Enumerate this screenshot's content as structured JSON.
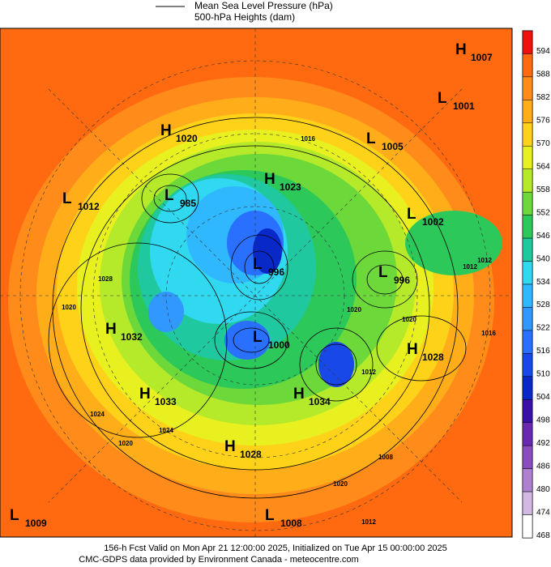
{
  "legend": {
    "line_label": "Mean Sea Level Pressure (hPa)",
    "fill_label": "500-hPa Heights (dam)"
  },
  "colorbar": {
    "levels": [
      594,
      588,
      582,
      576,
      570,
      564,
      558,
      552,
      546,
      540,
      534,
      528,
      522,
      516,
      510,
      504,
      498,
      492,
      486,
      480,
      474,
      468
    ],
    "colors": [
      "#f01010",
      "#ff6a10",
      "#ff8c1a",
      "#ffae1a",
      "#ffd21a",
      "#e8f020",
      "#b4ea2a",
      "#6cd83a",
      "#2cc85a",
      "#20c8a0",
      "#30d8f0",
      "#30b8ff",
      "#3098ff",
      "#2a70ff",
      "#1848e8",
      "#0828c8",
      "#3a10a8",
      "#6a28b0",
      "#8c4cc0",
      "#b080d0",
      "#d4b8e4",
      "#ffffff"
    ]
  },
  "centers": [
    {
      "type": "H",
      "value": 1007
    },
    {
      "type": "L",
      "value": 1001
    },
    {
      "type": "H",
      "value": 1020
    },
    {
      "type": "L",
      "value": 1005
    },
    {
      "type": "H",
      "value": 1023
    },
    {
      "type": "L",
      "value": 1012
    },
    {
      "type": "L",
      "value": 985
    },
    {
      "type": "L",
      "value": 1002
    },
    {
      "type": "L",
      "value": 996
    },
    {
      "type": "L",
      "value": 996
    },
    {
      "type": "H",
      "value": 1032
    },
    {
      "type": "L",
      "value": 1000
    },
    {
      "type": "H",
      "value": 1028
    },
    {
      "type": "H",
      "value": 1033
    },
    {
      "type": "H",
      "value": 1034
    },
    {
      "type": "H",
      "value": 1028
    },
    {
      "type": "L",
      "value": 1009
    },
    {
      "type": "L",
      "value": 1008
    }
  ],
  "contour_labels": [
    1016,
    1012,
    1028,
    1020,
    1024,
    1020,
    1024,
    1020,
    1012,
    1008,
    1016,
    1012,
    1020,
    1020,
    1012
  ],
  "footer": {
    "line1": "156-h Fcst Valid on Mon Apr 21 12:00:00 2025, Initialized on Tue Apr 15 00:00:00 2025",
    "line2": "CMC-GDPS data provided by Environment Canada - meteocentre.com"
  }
}
